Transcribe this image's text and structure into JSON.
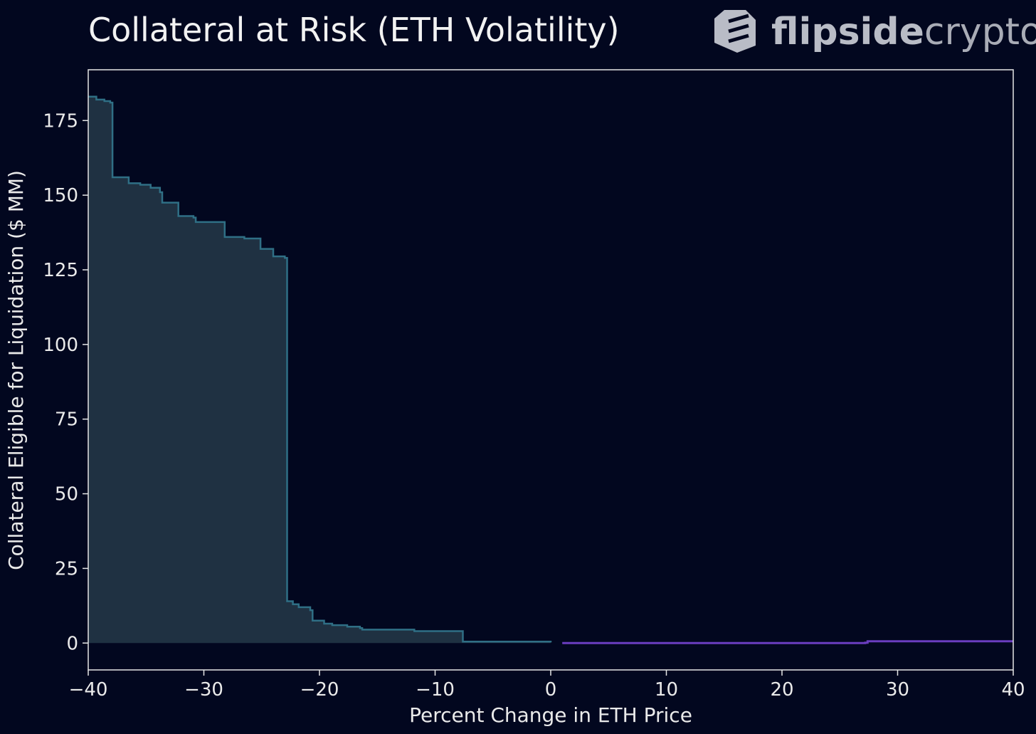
{
  "header": {
    "brand_bold": "flipside",
    "brand_light": "crypto"
  },
  "colors": {
    "background": "#02071f",
    "axes_frame": "#e6e6e6",
    "text": "#eaeaea",
    "negative_line": "#2f6f85",
    "negative_fill": "#1f3142",
    "positive_line": "#6a3dbf",
    "logo": "#b9bcc6"
  },
  "chart_data": {
    "type": "area",
    "title": "Collateral at Risk (ETH Volatility)",
    "xlabel": "Percent Change in ETH Price",
    "ylabel": "Collateral Eligible for Liquidation ($ MM)",
    "xlim": [
      -40,
      40
    ],
    "ylim": [
      -9,
      192
    ],
    "xticks": [
      -40,
      -30,
      -20,
      -10,
      0,
      10,
      20,
      30,
      40
    ],
    "xtick_labels": [
      "−40",
      "−30",
      "−20",
      "−10",
      "0",
      "10",
      "20",
      "30",
      "40"
    ],
    "yticks": [
      0,
      25,
      50,
      75,
      100,
      125,
      150,
      175
    ],
    "ytick_labels": [
      "0",
      "25",
      "50",
      "75",
      "100",
      "125",
      "150",
      "175"
    ],
    "grid": false,
    "series": [
      {
        "x": [
          -40,
          -39.3,
          -38.6,
          -38.1,
          -37.9,
          -37.9,
          -36.7,
          -36.5,
          -35.5,
          -34.6,
          -33.8,
          -33.6,
          -32.4,
          -32.2,
          -30.9,
          -30.7,
          -28.4,
          -28.2,
          -26.5,
          -25.3,
          -25.1,
          -24,
          -23,
          -22.8,
          -22.3,
          -21.8,
          -20.8,
          -20.6,
          -19.6,
          -18.9,
          -17.6,
          -16.5,
          -16.3,
          -12,
          -11.8,
          -7.8,
          -7.6,
          0
        ],
        "y": [
          183,
          182,
          181.5,
          181,
          165,
          156,
          156,
          154,
          153.5,
          152.5,
          151,
          147.5,
          147.5,
          143,
          142.5,
          141,
          141,
          136,
          135.5,
          135.5,
          132,
          129.5,
          129,
          14,
          13,
          12,
          11,
          7.5,
          6.5,
          6,
          5.5,
          5,
          4.5,
          4.5,
          4,
          4,
          0.5,
          0.2
        ]
      },
      {
        "x": [
          1,
          27.2,
          27.4,
          40
        ],
        "y": [
          0,
          0.1,
          0.6,
          0.6
        ]
      }
    ]
  }
}
